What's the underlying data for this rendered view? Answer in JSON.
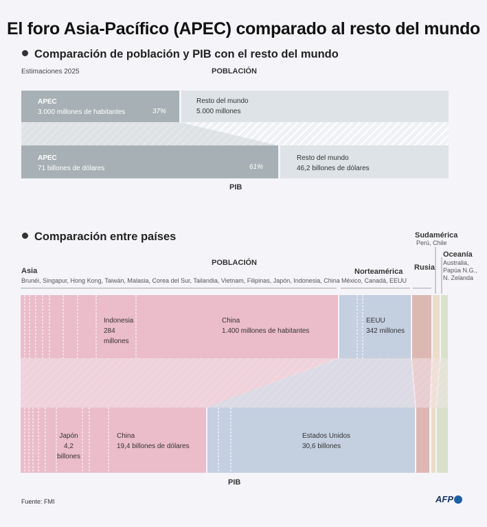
{
  "title": "El foro Asia-Pacífico (APEC) comparado al resto del mundo",
  "section1": {
    "heading": "Comparación de población y PIB con el resto del mundo",
    "note": "Estimaciones 2025",
    "population_label": "POBLACIÓN",
    "gdp_label": "PIB",
    "pop_apec_title": "APEC",
    "pop_apec_value": "3.000 millones de habitantes",
    "pop_apec_pct": "37%",
    "pop_rest_title": "Resto del mundo",
    "pop_rest_value": "5.000 millones",
    "gdp_apec_title": "APEC",
    "gdp_apec_value": "71 billones de dólares",
    "gdp_apec_pct": "61%",
    "gdp_rest_title": "Resto del mundo",
    "gdp_rest_value": "46,2 billones de dólares"
  },
  "section2": {
    "heading": "Comparación entre países",
    "population_label": "POBLACIÓN",
    "gdp_label": "PIB",
    "asia_title": "Asia",
    "asia_members": "Brunéi, Singapur, Hong Kong, Taiwán, Malasia, Corea del Sur, Tailandia, Vietnam, Filipinas, Japón, Indonesia, China",
    "na_title": "Norteamérica",
    "na_members": "México, Canadá, EEUU",
    "russia_title": "Rusia",
    "sa_title": "Sudamérica",
    "sa_members": "Perú, Chile",
    "oc_title": "Oceanía",
    "oc_members_1": "Australia,",
    "oc_members_2": "Papúa N.G.,",
    "oc_members_3": "N. Zelanda",
    "indonesia_1": "Indonesia",
    "indonesia_2": "284",
    "indonesia_3": "millones",
    "china_pop_1": "China",
    "china_pop_2": "1.400 millones de habitantes",
    "usa_pop_1": "EEUU",
    "usa_pop_2": "342 millones",
    "japan_gdp_1": "Japón",
    "japan_gdp_2": "4,2",
    "japan_gdp_3": "billones",
    "china_gdp_1": "China",
    "china_gdp_2": "19,4 billones de dólares",
    "usa_gdp_1": "Estados Unidos",
    "usa_gdp_2": "30,6 billones"
  },
  "colors": {
    "apec_box": "#a7b1b5",
    "rest_box": "#dde3e6",
    "asia": "#ebbcca",
    "north_america": "#c4cfe0",
    "russia": "#ddb8b2",
    "south_america": "#ecdcca",
    "oceania": "#d9e2c9"
  },
  "chart_data": [
    {
      "type": "bar",
      "title": "Comparación de población y PIB con el resto del mundo",
      "categories": [
        "POBLACIÓN",
        "PIB"
      ],
      "series": [
        {
          "name": "APEC",
          "values": [
            3000,
            71
          ],
          "shares_pct": [
            37,
            61
          ]
        },
        {
          "name": "Resto del mundo",
          "values": [
            5000,
            46.2
          ]
        }
      ],
      "units": [
        "millones de habitantes",
        "billones de dólares"
      ]
    },
    {
      "type": "bar",
      "title": "Comparación entre países",
      "categories": [
        "POBLACIÓN",
        "PIB"
      ],
      "series": [
        {
          "name": "Asia",
          "values": [
            null,
            null
          ]
        },
        {
          "name": "Norteamérica",
          "values": [
            null,
            null
          ]
        },
        {
          "name": "Rusia",
          "values": [
            null,
            null
          ]
        },
        {
          "name": "Sudamérica",
          "values": [
            null,
            null
          ]
        },
        {
          "name": "Oceanía",
          "values": [
            null,
            null
          ]
        }
      ],
      "labeled_values": [
        {
          "label": "Indonesia",
          "population_millones": 284
        },
        {
          "label": "China",
          "population_millones": 1400,
          "gdp_billones": 19.4
        },
        {
          "label": "EEUU",
          "population_millones": 342,
          "gdp_billones": 30.6
        },
        {
          "label": "Japón",
          "gdp_billones": 4.2
        }
      ]
    }
  ],
  "footer": {
    "source": "Fuente: FMI",
    "logo": "AFP"
  }
}
